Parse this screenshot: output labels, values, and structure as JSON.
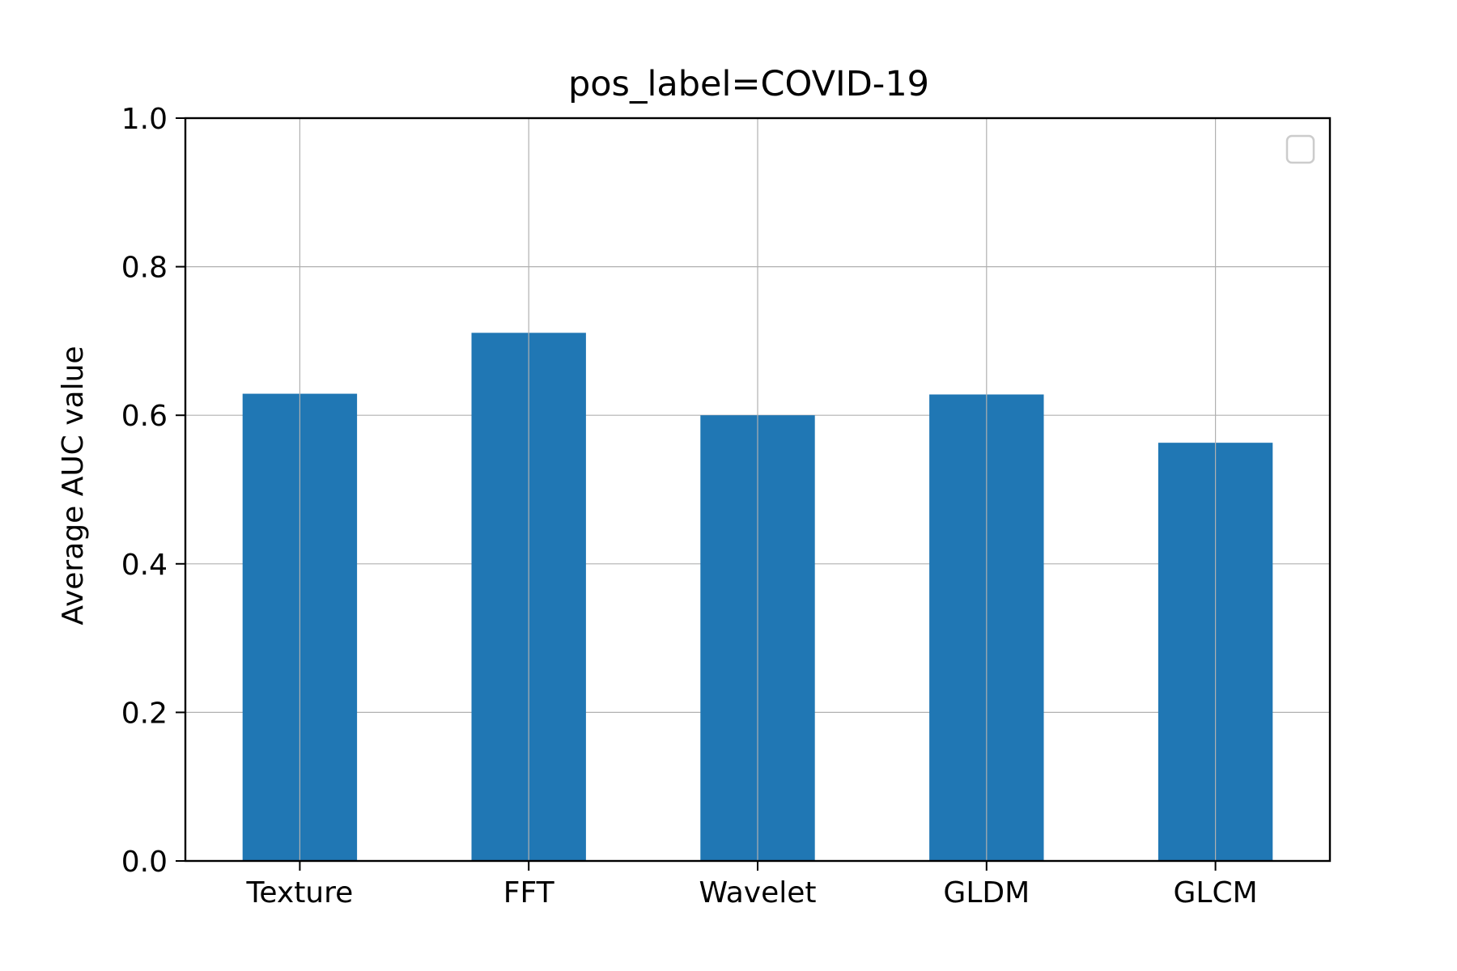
{
  "chart_data": {
    "type": "bar",
    "title": "pos_label=COVID-19",
    "xlabel": "",
    "ylabel": "Average AUC value",
    "categories": [
      "Texture",
      "FFT",
      "Wavelet",
      "GLDM",
      "GLCM"
    ],
    "values": [
      0.629,
      0.711,
      0.6,
      0.628,
      0.563
    ],
    "ylim": [
      0,
      1.0
    ],
    "yticks": [
      "0.0",
      "0.2",
      "0.4",
      "0.6",
      "0.8",
      "1.0"
    ],
    "grid": true,
    "legend": "top-right (empty)",
    "colors": {
      "bar": "#2077b4",
      "grid": "#b0b0b0",
      "axis": "#000000",
      "legend_border": "#cccccc"
    }
  }
}
